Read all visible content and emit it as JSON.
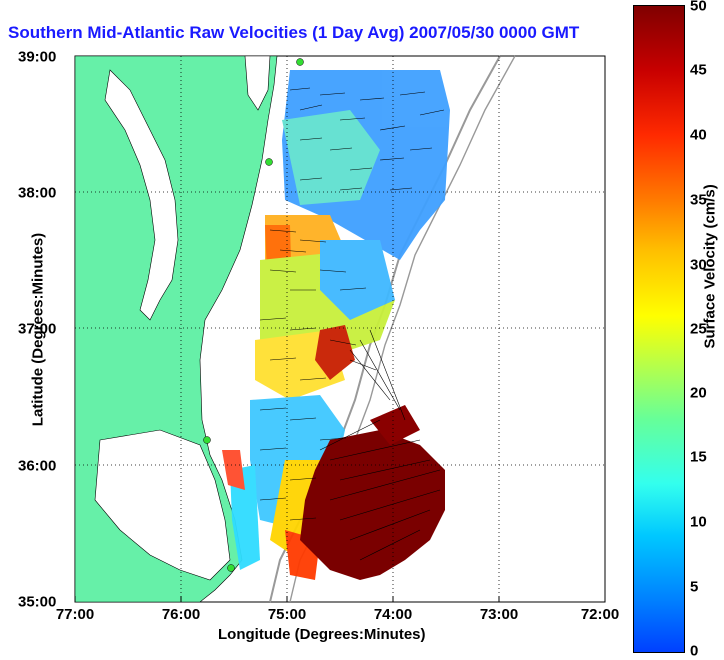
{
  "title": "Southern Mid-Atlantic Raw Velocities (1 Day Avg) 2007/05/30 0000 GMT",
  "x_axis": {
    "label": "Longitude (Degrees:Minutes)",
    "ticks": [
      "77:00",
      "76:00",
      "75:00",
      "74:00",
      "73:00",
      "72:00"
    ]
  },
  "y_axis": {
    "label": "Latitude (Degrees:Minutes)",
    "ticks": [
      "39:00",
      "38:00",
      "37:00",
      "36:00",
      "35:00"
    ]
  },
  "colorbar": {
    "label": "Surface Velocity (cm/s)",
    "ticks": [
      "50",
      "45",
      "40",
      "35",
      "30",
      "25",
      "20",
      "15",
      "10",
      "5",
      "0"
    ],
    "min": 0,
    "max": 50
  },
  "colors": {
    "land": "#66f0a8",
    "water": "#ffffff",
    "title": "#1a1aff"
  }
}
